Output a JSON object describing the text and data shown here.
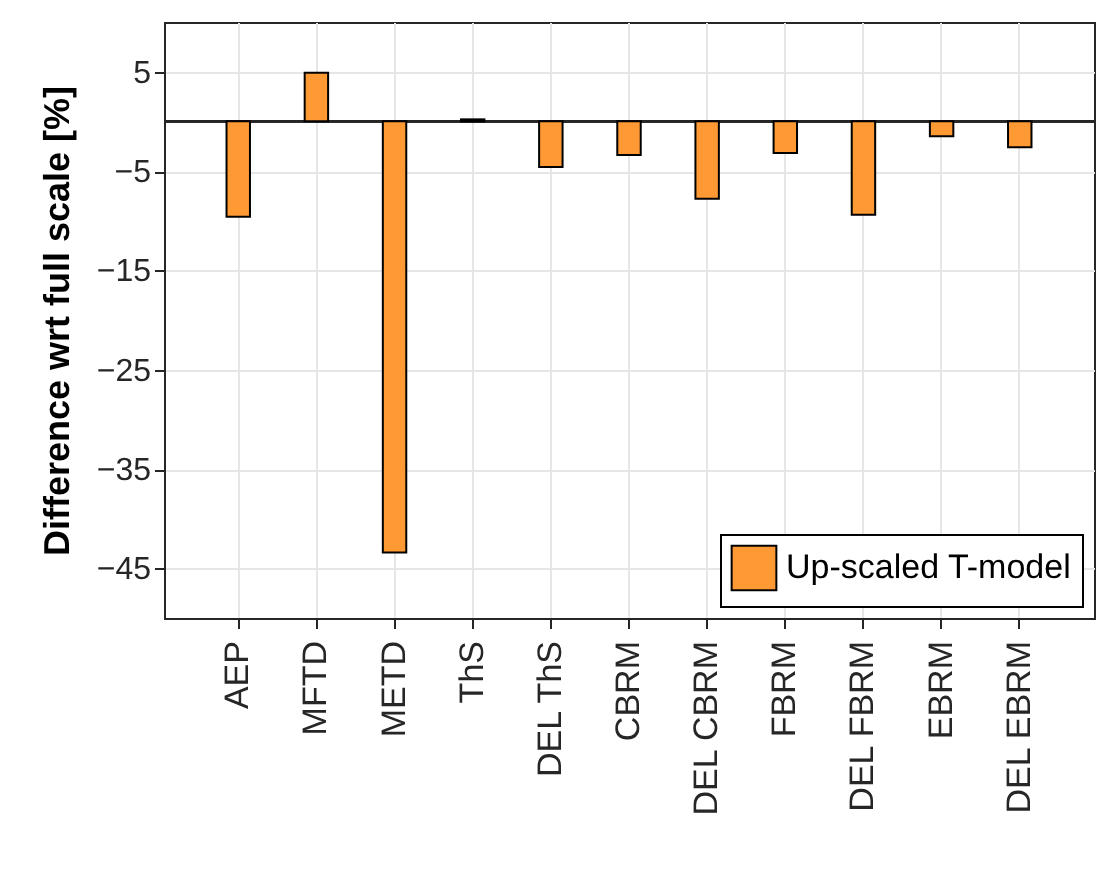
{
  "chart_data": {
    "type": "bar",
    "ylabel": "Difference wrt full scale [%]",
    "categories": [
      "AEP",
      "MFTD",
      "METD",
      "ThS",
      "DEL ThS",
      "CBRM",
      "DEL CBRM",
      "FBRM",
      "DEL FBRM",
      "EBRM",
      "DEL EBRM"
    ],
    "series": [
      {
        "name": "Up-scaled T-model",
        "color": "#ff9933",
        "values": [
          -9.6,
          4.9,
          -43.4,
          0.2,
          -4.6,
          -3.4,
          -7.8,
          -3.2,
          -9.4,
          -1.5,
          -2.6
        ]
      }
    ],
    "ylim": [
      -50,
      10
    ],
    "yticks": [
      5,
      -5,
      -15,
      -25,
      -35,
      -45
    ],
    "ref_lines": [
      {
        "axis": "y",
        "value": 0
      }
    ],
    "grid": true,
    "legend": "bottom right"
  }
}
